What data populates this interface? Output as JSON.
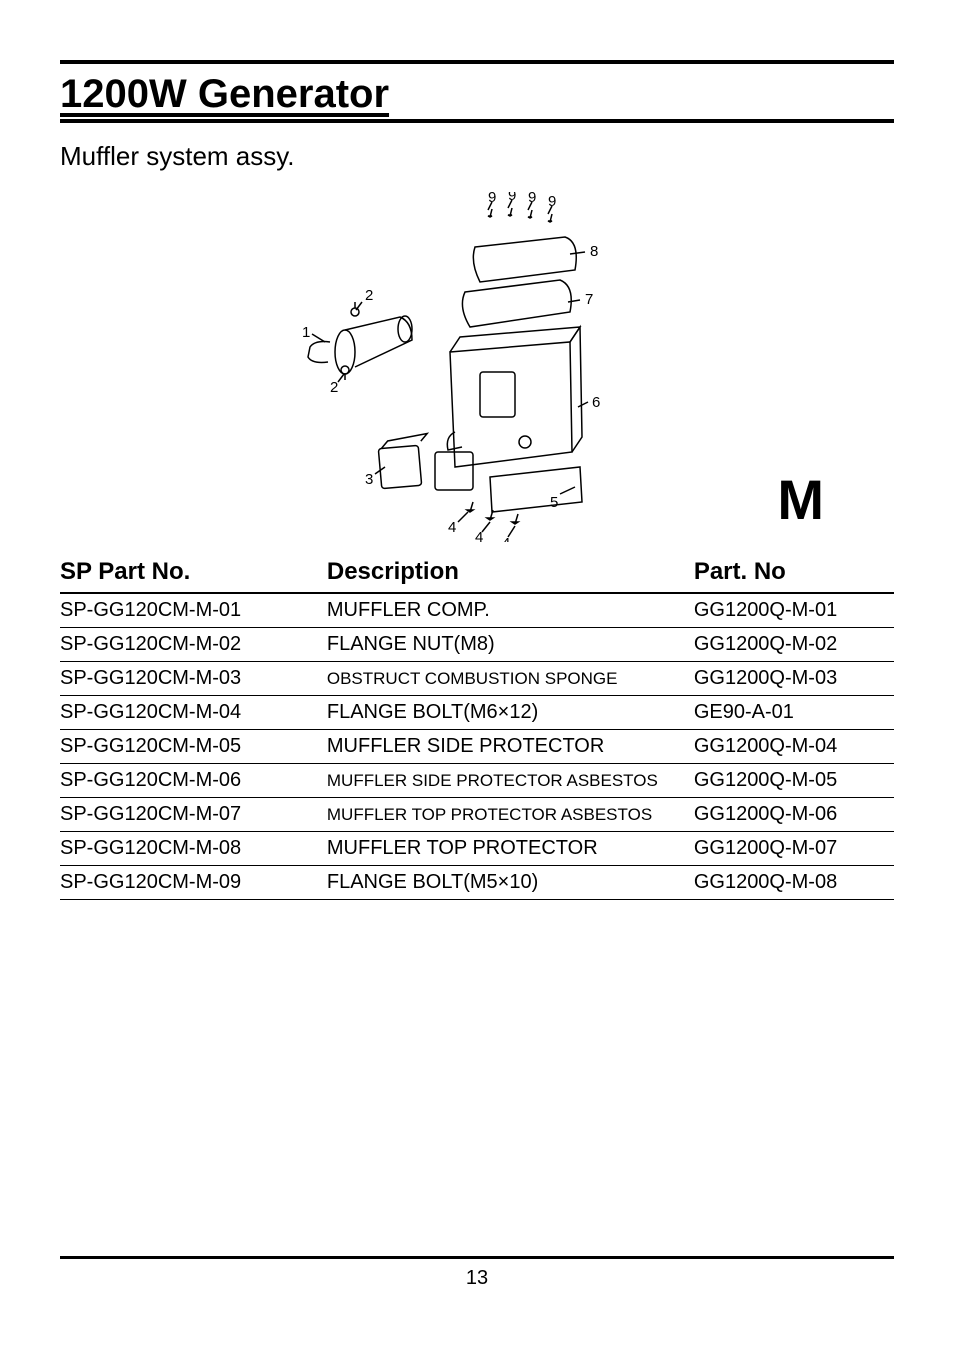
{
  "title": "1200W Generator",
  "subtitle": "Muffler system assy.",
  "section_letter": "M",
  "page_number": "13",
  "columns": {
    "sp": "SP Part No.",
    "desc": "Description",
    "part": "Part. No"
  },
  "rows": [
    {
      "sp": "SP-GG120CM-M-01",
      "desc": "MUFFLER COMP.",
      "part": "GG1200Q-M-01",
      "small": false
    },
    {
      "sp": "SP-GG120CM-M-02",
      "desc": "FLANGE NUT(M8)",
      "part": "GG1200Q-M-02",
      "small": false
    },
    {
      "sp": "SP-GG120CM-M-03",
      "desc": "OBSTRUCT COMBUSTION SPONGE",
      "part": "GG1200Q-M-03",
      "small": true
    },
    {
      "sp": "SP-GG120CM-M-04",
      "desc": "FLANGE BOLT(M6×12)",
      "part": "GE90-A-01",
      "small": false
    },
    {
      "sp": "SP-GG120CM-M-05",
      "desc": "MUFFLER SIDE PROTECTOR",
      "part": "GG1200Q-M-04",
      "small": false
    },
    {
      "sp": "SP-GG120CM-M-06",
      "desc": "MUFFLER SIDE PROTECTOR ASBESTOS",
      "part": "GG1200Q-M-05",
      "small": true
    },
    {
      "sp": "SP-GG120CM-M-07",
      "desc": "MUFFLER TOP PROTECTOR ASBESTOS",
      "part": "GG1200Q-M-06",
      "small": true
    },
    {
      "sp": "SP-GG120CM-M-08",
      "desc": "MUFFLER TOP PROTECTOR",
      "part": "GG1200Q-M-07",
      "small": false
    },
    {
      "sp": "SP-GG120CM-M-09",
      "desc": "FLANGE BOLT(M5×10)",
      "part": "GG1200Q-M-08",
      "small": false
    }
  ],
  "callouts": [
    "1",
    "2",
    "2",
    "3",
    "4",
    "4",
    "4",
    "5",
    "6",
    "7",
    "8",
    "9",
    "9",
    "9",
    "9"
  ]
}
